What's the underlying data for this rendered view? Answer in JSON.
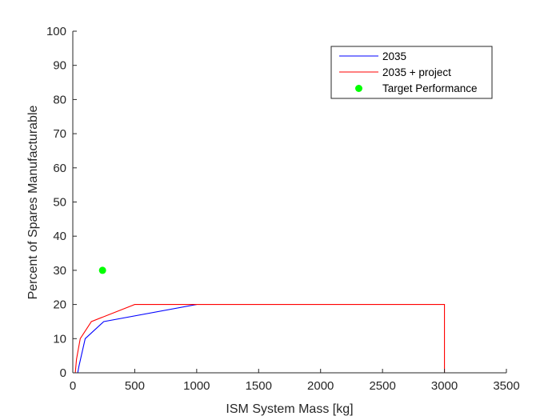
{
  "chart_data": {
    "type": "line",
    "title": "",
    "xlabel": "ISM System Mass [kg]",
    "ylabel": "Percent of Spares Manufacturable",
    "xlim": [
      0,
      3500
    ],
    "ylim": [
      0,
      100
    ],
    "xticks": [
      0,
      500,
      1000,
      1500,
      2000,
      2500,
      3000,
      3500
    ],
    "yticks": [
      0,
      10,
      20,
      30,
      40,
      50,
      60,
      70,
      80,
      90,
      100
    ],
    "grid": false,
    "legend_location": "top-right",
    "series": [
      {
        "name": "2035",
        "kind": "line",
        "color": "#0000ff",
        "x": [
          40,
          50,
          100,
          250,
          1000
        ],
        "y": [
          0,
          2,
          10,
          15,
          20
        ]
      },
      {
        "name": "2035 + project",
        "kind": "line",
        "color": "#ff0000",
        "x": [
          20,
          30,
          60,
          150,
          500,
          3000,
          3000
        ],
        "y": [
          0,
          4,
          10,
          15,
          20,
          20,
          0
        ]
      },
      {
        "name": "Target Performance",
        "kind": "scatter",
        "color": "#00ff00",
        "x": [
          240
        ],
        "y": [
          30
        ]
      }
    ]
  }
}
